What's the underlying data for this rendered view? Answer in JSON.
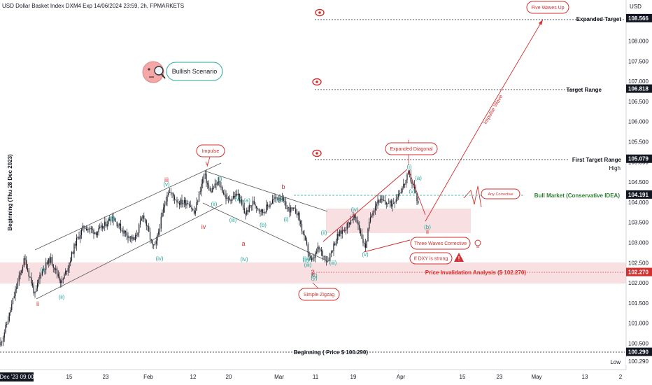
{
  "header": {
    "title": "USD Dollar Basket Index DXM4 Exp 14/06/2024 23:59, 2h, FPMARKETS",
    "currency": "USD"
  },
  "colors": {
    "red": "#d32f2f",
    "teal": "#26a69a",
    "green_text": "#2e7d32",
    "zone": "#f7d9dc",
    "candle": "#131722",
    "dark_label": "#131722",
    "red_label": "#d32f2f",
    "channel": "#555555"
  },
  "axis": {
    "y_ticks": [
      "108.000",
      "107.500",
      "107.000",
      "106.500",
      "106.000",
      "105.500",
      "105.000",
      "104.500",
      "104.000",
      "103.500",
      "103.000",
      "102.500",
      "102.000",
      "101.500",
      "101.000",
      "100.500"
    ],
    "x_labels": [
      "Dec '23  09:00",
      "15",
      "23",
      "Feb",
      "12",
      "20",
      "Mar",
      "11",
      "19",
      "Apr",
      "15",
      "23",
      "May",
      "13",
      "2"
    ],
    "high_label": "High",
    "low_label": "Low"
  },
  "levels": [
    {
      "name": "Expanded Target",
      "price": "108.566",
      "style": "red"
    },
    {
      "name": "Target Range",
      "price": "106.818",
      "style": "dark"
    },
    {
      "name": "First Target Range",
      "price": "105.079",
      "style": "dark"
    },
    {
      "name": "Bull Market (Conservative IDEA)",
      "price": "104.191",
      "style": "teal"
    },
    {
      "name": "Price Invalidation Analysis ($ 102.270)",
      "price": "102.270",
      "style": "red"
    },
    {
      "name": "Beginning ( Price $ 100.290)",
      "price": "100.290",
      "style": "dark"
    }
  ],
  "annotations": {
    "scenario": "Bullish Scenario",
    "five_waves_up": "Five Waves Up",
    "impulse": "Impulse",
    "expanded_diagonal": "Expanded Diagonal",
    "simple_zigzag": "Simple Zigzag",
    "three_waves_corrective": "Three Waves Corrective",
    "if_dxy_strong": "If DXY is strong",
    "any_corrective": "Any Corrective",
    "impulse_wave": "Impulse Wave",
    "left_axis": "Beginning (Thu 28 Dec 2023)"
  },
  "wave_labels": {
    "red": [
      "i",
      "ii",
      "iii",
      "iv",
      "v",
      "a",
      "b",
      "c",
      "i",
      "ii",
      "2"
    ],
    "teal": [
      "(i)",
      "(ii)",
      "(iii)",
      "(iv)",
      "(v)",
      "(i)",
      "(ii)",
      "(iii)",
      "(iv)",
      "(v)",
      "(a)",
      "(b)",
      "(c)",
      "(i)",
      "(ii)",
      "(iii)",
      "(iv)",
      "(v)",
      "(i)",
      "(ii)",
      "(iii)",
      "(iv)",
      "(v)",
      "(a)",
      "(b)",
      "(c)",
      "(y)"
    ]
  },
  "chart_data": {
    "type": "candlestick",
    "instrument": "USD Dollar Basket Index DXM4",
    "timeframe": "2h",
    "ylim": [
      100.0,
      108.9
    ],
    "path": [
      [
        0,
        100.45
      ],
      [
        10,
        101.0
      ],
      [
        22,
        101.8
      ],
      [
        35,
        102.6
      ],
      [
        50,
        101.7
      ],
      [
        58,
        102.25
      ],
      [
        72,
        102.6
      ],
      [
        88,
        102.0
      ],
      [
        98,
        102.45
      ],
      [
        108,
        103.0
      ],
      [
        120,
        103.4
      ],
      [
        138,
        103.25
      ],
      [
        148,
        103.4
      ],
      [
        160,
        103.65
      ],
      [
        175,
        103.3
      ],
      [
        192,
        103.05
      ],
      [
        205,
        103.7
      ],
      [
        218,
        102.9
      ],
      [
        222,
        102.9
      ],
      [
        232,
        103.7
      ],
      [
        240,
        104.3
      ],
      [
        255,
        104.0
      ],
      [
        270,
        104.0
      ],
      [
        278,
        103.7
      ],
      [
        285,
        104.25
      ],
      [
        292,
        104.7
      ],
      [
        300,
        104.25
      ],
      [
        312,
        104.5
      ],
      [
        325,
        104.05
      ],
      [
        340,
        104.2
      ],
      [
        350,
        103.7
      ],
      [
        362,
        104.0
      ],
      [
        375,
        103.75
      ],
      [
        390,
        104.05
      ],
      [
        400,
        104.15
      ],
      [
        410,
        103.85
      ],
      [
        425,
        103.75
      ],
      [
        435,
        103.1
      ],
      [
        445,
        102.5
      ],
      [
        455,
        102.85
      ],
      [
        468,
        102.55
      ],
      [
        482,
        103.15
      ],
      [
        495,
        103.4
      ],
      [
        505,
        103.65
      ],
      [
        512,
        103.45
      ],
      [
        522,
        102.85
      ],
      [
        530,
        103.7
      ],
      [
        540,
        104.05
      ],
      [
        560,
        103.95
      ],
      [
        578,
        104.45
      ],
      [
        584,
        104.7
      ],
      [
        592,
        104.35
      ],
      [
        598,
        103.95
      ]
    ],
    "projection": [
      [
        598,
        103.95
      ],
      [
        608,
        103.45
      ],
      [
        616,
        103.3
      ],
      [
        645,
        104.4
      ],
      [
        690,
        105.5
      ],
      [
        730,
        106.7
      ],
      [
        776,
        108.5
      ]
    ]
  }
}
